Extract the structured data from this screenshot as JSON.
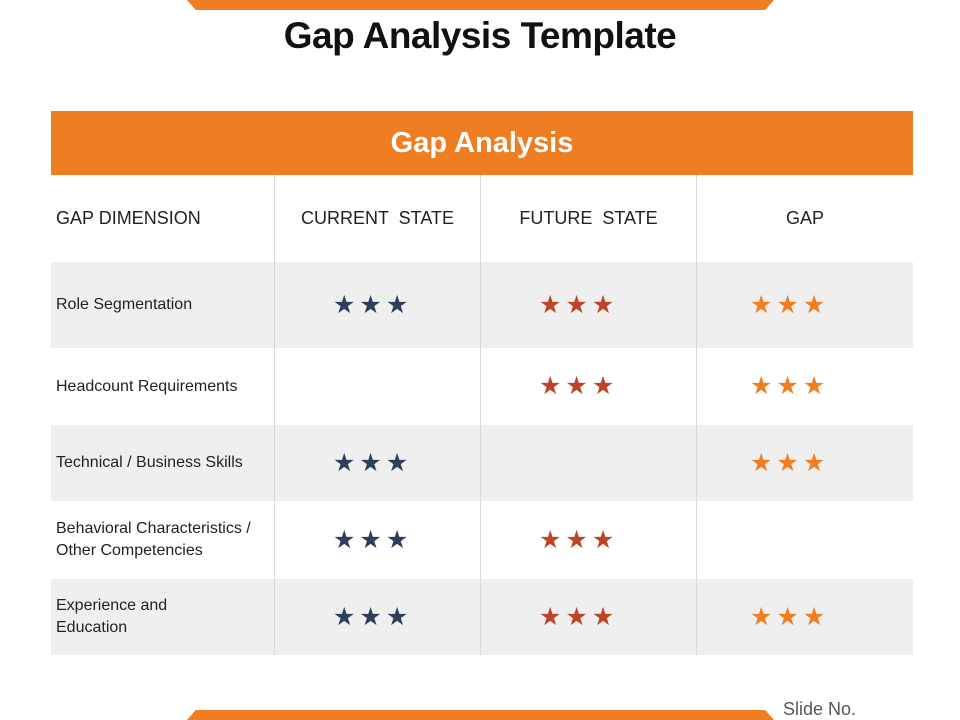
{
  "title": "Gap Analysis Template",
  "table": {
    "header": "Gap Analysis",
    "columns": [
      "GAP DIMENSION",
      "CURRENT  STATE",
      "FUTURE  STATE",
      "GAP"
    ],
    "rows": [
      {
        "label": "Role Segmentation",
        "current": "★★★",
        "future": "★★★",
        "gap": "★★★"
      },
      {
        "label": "Headcount Requirements",
        "current": "",
        "future": "★★★",
        "gap": "★★★"
      },
      {
        "label": "Technical / Business Skills",
        "current": "★★★",
        "future": "",
        "gap": "★★★"
      },
      {
        "label": "Behavioral Characteristics / Other Competencies",
        "current": "★★★",
        "future": "★★★",
        "gap": ""
      },
      {
        "label": "Experience and Education",
        "current": "★★★",
        "future": "★★★",
        "gap": "★★★"
      }
    ]
  },
  "colors": {
    "accent": "#ef7e22",
    "current_star": "#2f3f5a",
    "future_star": "#bc4527",
    "gap_star": "#ef7e22"
  },
  "icons": {
    "star": "star-icon"
  },
  "footer": {
    "slide_label": "Slide No."
  }
}
